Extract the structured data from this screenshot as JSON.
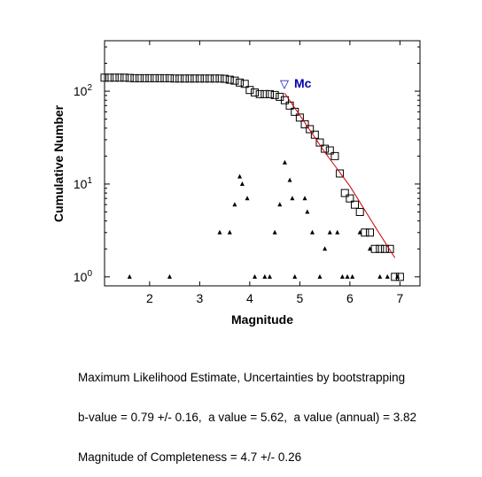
{
  "chart_data": {
    "type": "scatter",
    "xlabel": "Magnitude",
    "ylabel": "Cumulative Number",
    "xlim": [
      1.1,
      7.4
    ],
    "ylim": [
      0.8,
      350
    ],
    "yscale": "log",
    "grid": false,
    "x_ticks": [
      2,
      3,
      4,
      5,
      6,
      7
    ],
    "y_ticks": [
      {
        "value": 1,
        "base": "10",
        "exp": "0"
      },
      {
        "value": 10,
        "base": "10",
        "exp": "1"
      },
      {
        "value": 100,
        "base": "10",
        "exp": "2"
      }
    ],
    "mc_marker": {
      "x": 4.7,
      "y": 110,
      "symbol": "▽",
      "label": "Mc",
      "color": "#0000aa"
    },
    "series": [
      {
        "marker": "square",
        "color": "#000000",
        "points": [
          [
            1.1,
            140
          ],
          [
            1.2,
            140
          ],
          [
            1.3,
            140
          ],
          [
            1.4,
            140
          ],
          [
            1.5,
            140
          ],
          [
            1.6,
            139
          ],
          [
            1.7,
            138
          ],
          [
            1.8,
            138
          ],
          [
            1.9,
            138
          ],
          [
            2.0,
            138
          ],
          [
            2.1,
            138
          ],
          [
            2.2,
            138
          ],
          [
            2.3,
            138
          ],
          [
            2.4,
            138
          ],
          [
            2.5,
            137
          ],
          [
            2.6,
            137
          ],
          [
            2.7,
            137
          ],
          [
            2.8,
            137
          ],
          [
            2.9,
            137
          ],
          [
            3.0,
            137
          ],
          [
            3.1,
            137
          ],
          [
            3.2,
            137
          ],
          [
            3.3,
            137
          ],
          [
            3.4,
            137
          ],
          [
            3.5,
            136
          ],
          [
            3.6,
            133
          ],
          [
            3.7,
            130
          ],
          [
            3.8,
            124
          ],
          [
            3.9,
            120
          ],
          [
            4.0,
            103
          ],
          [
            4.1,
            97
          ],
          [
            4.2,
            93
          ],
          [
            4.3,
            93
          ],
          [
            4.4,
            93
          ],
          [
            4.5,
            91
          ],
          [
            4.6,
            87
          ],
          [
            4.7,
            80
          ],
          [
            4.8,
            70
          ],
          [
            4.9,
            60
          ],
          [
            5.0,
            52
          ],
          [
            5.1,
            44
          ],
          [
            5.2,
            39
          ],
          [
            5.3,
            34
          ],
          [
            5.4,
            28
          ],
          [
            5.5,
            24
          ],
          [
            5.6,
            23
          ],
          [
            5.7,
            20
          ],
          [
            5.8,
            13
          ],
          [
            5.9,
            8
          ],
          [
            6.0,
            7
          ],
          [
            6.1,
            6
          ],
          [
            6.2,
            5
          ],
          [
            6.3,
            3
          ],
          [
            6.4,
            3
          ],
          [
            6.5,
            2
          ],
          [
            6.6,
            2
          ],
          [
            6.7,
            2
          ],
          [
            6.8,
            2
          ],
          [
            6.9,
            1
          ],
          [
            7.0,
            1
          ]
        ]
      },
      {
        "marker": "triangle",
        "color": "#000000",
        "points": [
          [
            1.6,
            1
          ],
          [
            2.4,
            1
          ],
          [
            3.4,
            3
          ],
          [
            3.6,
            3
          ],
          [
            3.7,
            6
          ],
          [
            3.8,
            12
          ],
          [
            3.85,
            10
          ],
          [
            3.95,
            7
          ],
          [
            4.1,
            1
          ],
          [
            4.3,
            1
          ],
          [
            4.4,
            1
          ],
          [
            4.5,
            3
          ],
          [
            4.6,
            6
          ],
          [
            4.7,
            17
          ],
          [
            4.8,
            11
          ],
          [
            4.85,
            7
          ],
          [
            4.9,
            1
          ],
          [
            5.1,
            7
          ],
          [
            5.15,
            5
          ],
          [
            5.25,
            3
          ],
          [
            5.4,
            1
          ],
          [
            5.5,
            2
          ],
          [
            5.6,
            3
          ],
          [
            5.75,
            3
          ],
          [
            5.85,
            1
          ],
          [
            5.95,
            1
          ],
          [
            6.05,
            1
          ],
          [
            6.2,
            3
          ],
          [
            6.4,
            2
          ],
          [
            6.6,
            1
          ],
          [
            6.75,
            1
          ],
          [
            6.95,
            1
          ]
        ]
      },
      {
        "marker": "line",
        "color": "#cc0000",
        "points": [
          [
            4.7,
            95
          ],
          [
            5.0,
            55
          ],
          [
            5.5,
            22
          ],
          [
            6.0,
            9.5
          ],
          [
            6.5,
            3.5
          ],
          [
            6.9,
            1.6
          ]
        ]
      }
    ]
  },
  "annotation": {
    "line1": "Maximum Likelihood Estimate, Uncertainties by bootstrapping",
    "line2": "b-value = 0.79 +/- 0.16,  a value = 5.62,  a value (annual) = 3.82",
    "line3": "Magnitude of Completeness = 4.7 +/- 0.26"
  }
}
